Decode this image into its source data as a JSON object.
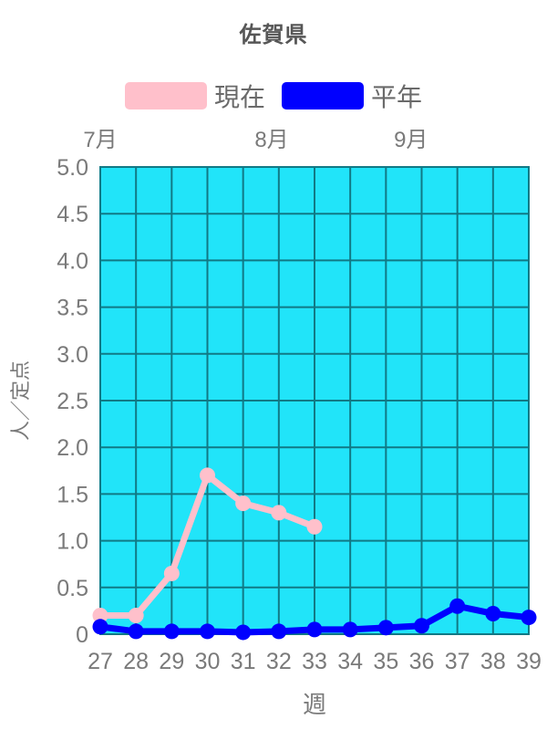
{
  "title": "佐賀県",
  "legend": [
    {
      "label": "現在",
      "color": "#ffc0cb"
    },
    {
      "label": "平年",
      "color": "#0000ff"
    }
  ],
  "colors": {
    "plot_bg": "#21e4f9",
    "grid": "#117985",
    "tick_text": "#7a7a7a",
    "title_text": "#565656",
    "series_current": "#ffc0cb",
    "series_normal": "#0000ff"
  },
  "chart_data": {
    "type": "line",
    "x": [
      27,
      28,
      29,
      30,
      31,
      32,
      33,
      34,
      35,
      36,
      37,
      38,
      39
    ],
    "x_tick_labels": [
      "27",
      "28",
      "29",
      "30",
      "31",
      "32",
      "33",
      "34",
      "35",
      "36",
      "37",
      "38",
      "39"
    ],
    "xlabel": "週",
    "ylabel": "人／定点",
    "ylim": [
      0,
      5
    ],
    "y_ticks": [
      0,
      0.5,
      1.0,
      1.5,
      2.0,
      2.5,
      3.0,
      3.5,
      4.0,
      4.5,
      5.0
    ],
    "y_tick_labels": [
      "0",
      "0.5",
      "1.0",
      "1.5",
      "2.0",
      "2.5",
      "3.0",
      "3.5",
      "4.0",
      "4.5",
      "5.0"
    ],
    "month_annotations": [
      {
        "label": "7月",
        "week": 27
      },
      {
        "label": "8月",
        "week": 31.8
      },
      {
        "label": "9月",
        "week": 35.7
      }
    ],
    "series": [
      {
        "name": "現在",
        "color": "#ffc0cb",
        "values": [
          0.2,
          0.2,
          0.65,
          1.7,
          1.4,
          1.3,
          1.15,
          null,
          null,
          null,
          null,
          null,
          null
        ]
      },
      {
        "name": "平年",
        "color": "#0000ff",
        "values": [
          0.08,
          0.03,
          0.03,
          0.03,
          0.02,
          0.03,
          0.05,
          0.05,
          0.07,
          0.09,
          0.3,
          0.22,
          0.18
        ]
      }
    ],
    "grid": true,
    "legend_position": "top"
  }
}
